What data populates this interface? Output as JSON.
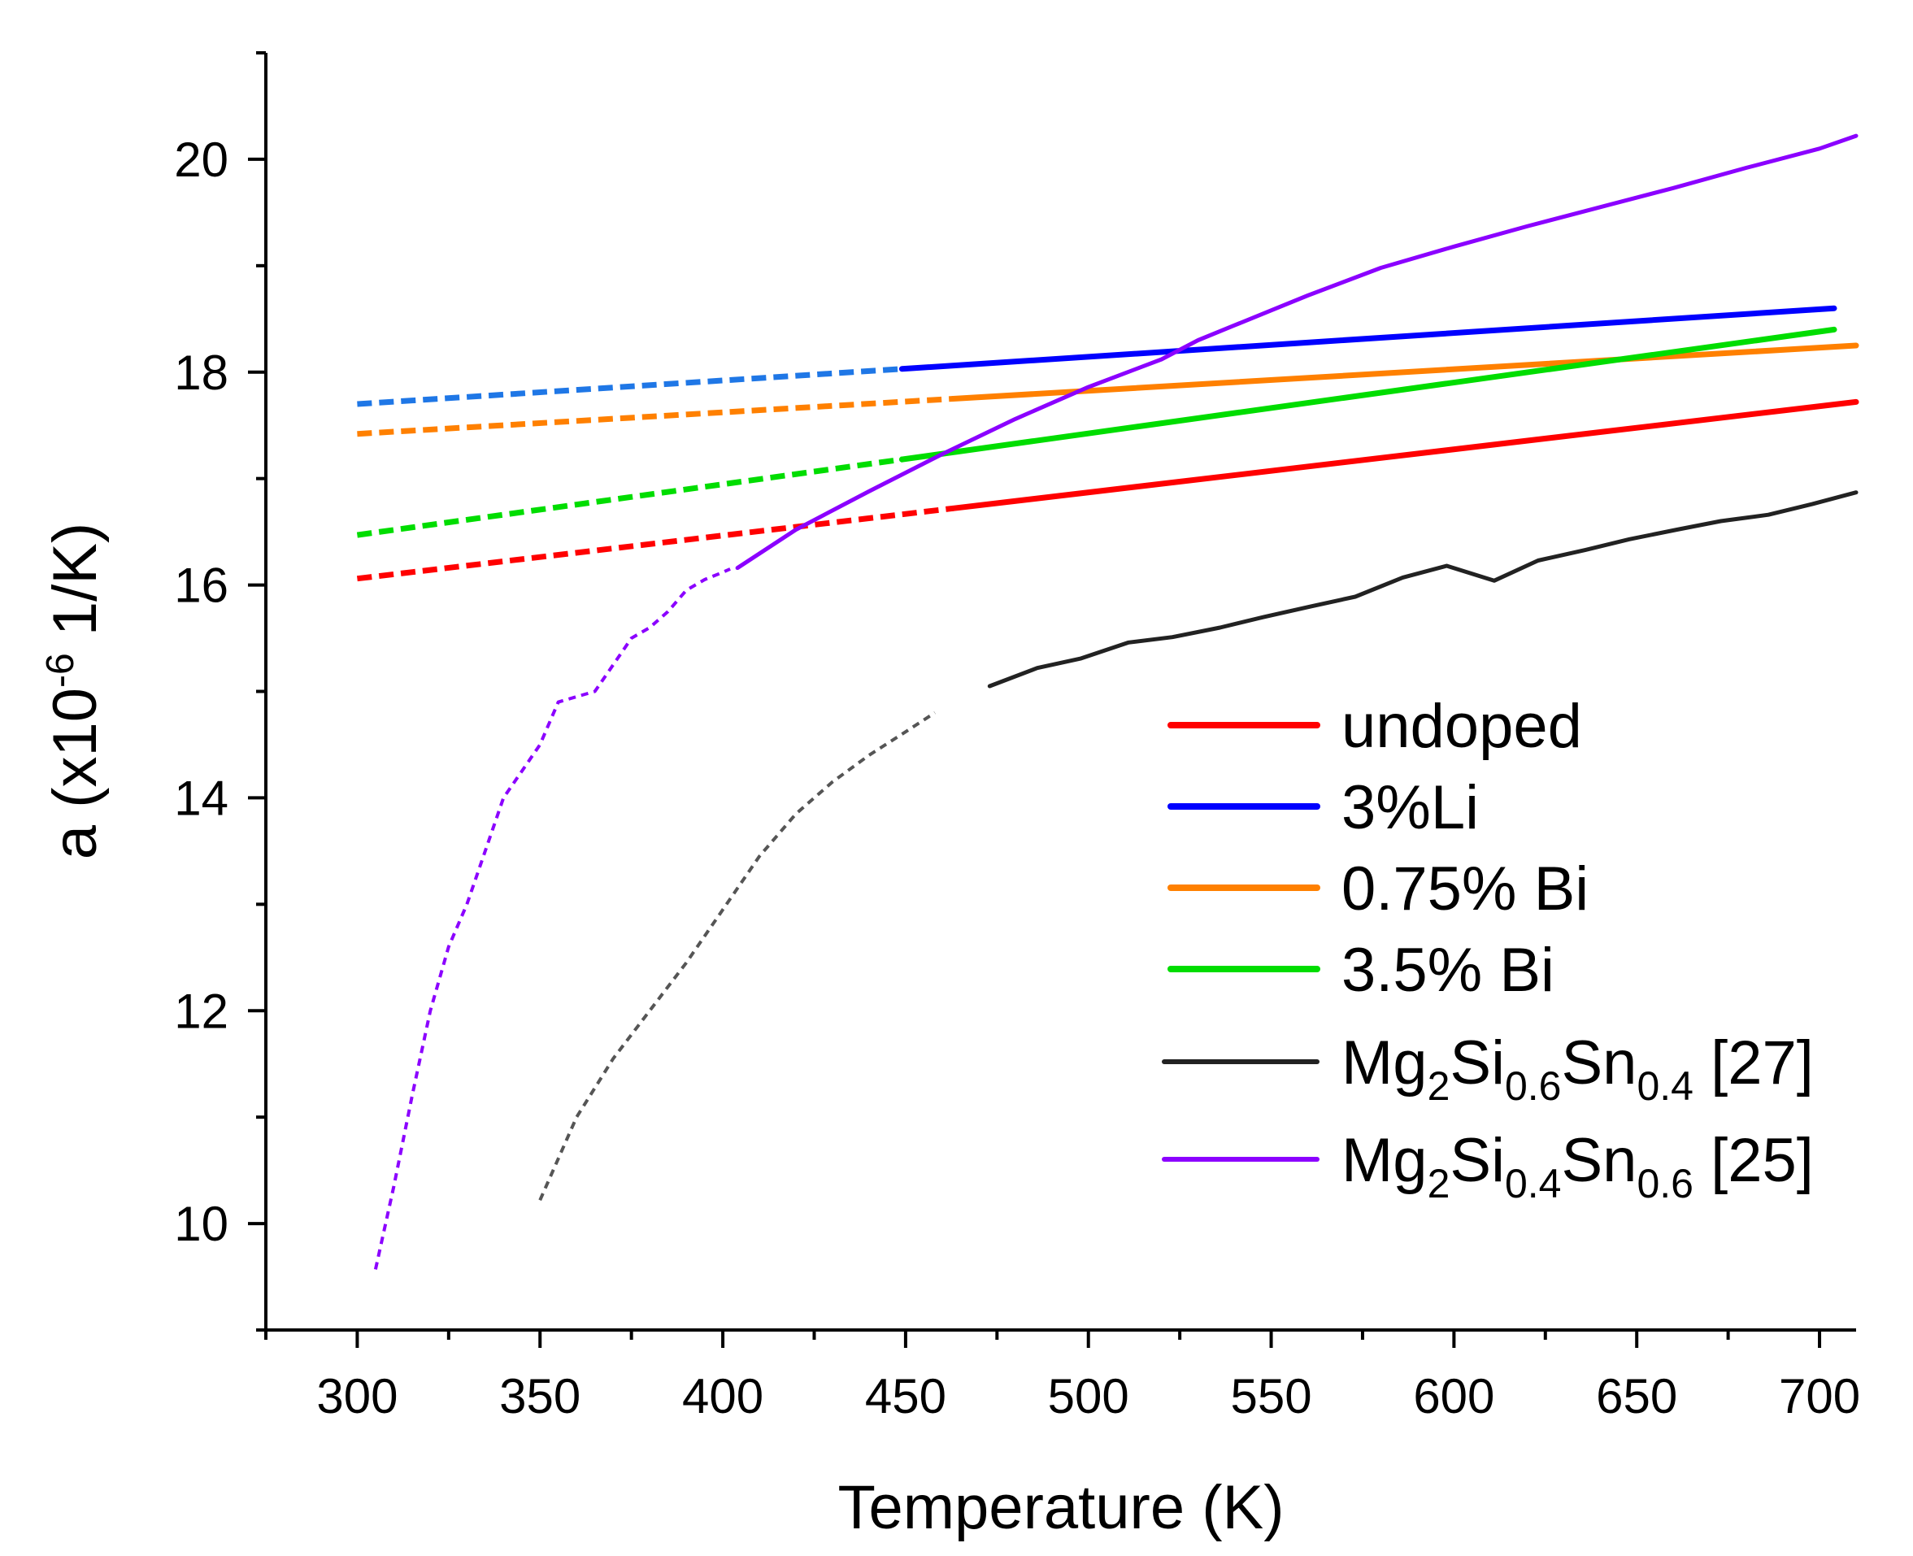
{
  "chart_data": {
    "type": "line",
    "title": "",
    "xlabel": "Temperature (K)",
    "ylabel": {
      "prefix": "a (x10",
      "exponent": "-6",
      "suffix": " 1/K)"
    },
    "xlim": [
      275,
      710
    ],
    "ylim": [
      9,
      21
    ],
    "xticks": [
      300,
      350,
      400,
      450,
      500,
      550,
      600,
      650,
      700
    ],
    "xtick_labels": [
      "300",
      "350",
      "400",
      "450",
      "500",
      "550",
      "600",
      "650",
      "700"
    ],
    "yticks": [
      10,
      12,
      14,
      16,
      18,
      20
    ],
    "ytick_labels": [
      "10",
      "12",
      "14",
      "16",
      "18",
      "20"
    ],
    "grid": false,
    "legend_position": "lower-right",
    "series": [
      {
        "name": "undoped",
        "color": "#ff0000",
        "dashed_color": "#ff0000",
        "segments": [
          {
            "style": "dashed",
            "x": [
              300,
              463
            ],
            "y": [
              16.06,
              16.72
            ]
          },
          {
            "style": "solid",
            "x": [
              463,
              710
            ],
            "y": [
              16.72,
              17.72
            ]
          }
        ]
      },
      {
        "name": "3%Li",
        "color": "#0000ff",
        "dashed_color": "#1f77e6",
        "segments": [
          {
            "style": "dashed",
            "x": [
              300,
              449
            ],
            "y": [
              17.7,
              18.03
            ]
          },
          {
            "style": "solid",
            "x": [
              449,
              704
            ],
            "y": [
              18.03,
              18.6
            ]
          }
        ]
      },
      {
        "name": "0.75% Bi",
        "color": "#ff8000",
        "dashed_color": "#ff8000",
        "segments": [
          {
            "style": "dashed",
            "x": [
              300,
              463
            ],
            "y": [
              17.42,
              17.75
            ]
          },
          {
            "style": "solid",
            "x": [
              463,
              710
            ],
            "y": [
              17.75,
              18.25
            ]
          }
        ]
      },
      {
        "name": "3.5% Bi",
        "color": "#00dd00",
        "dashed_color": "#00dd00",
        "segments": [
          {
            "style": "dashed",
            "x": [
              300,
              449
            ],
            "y": [
              16.47,
              17.18
            ]
          },
          {
            "style": "solid",
            "x": [
              449,
              704
            ],
            "y": [
              17.18,
              18.4
            ]
          }
        ]
      },
      {
        "name_parts": [
          {
            "text": "Mg",
            "sub": false
          },
          {
            "text": "2",
            "sub": true
          },
          {
            "text": "Si",
            "sub": false
          },
          {
            "text": "0.6",
            "sub": true
          },
          {
            "text": "Sn",
            "sub": false
          },
          {
            "text": "0.4",
            "sub": true
          },
          {
            "text": " [27]",
            "sub": false
          }
        ],
        "color": "#222222",
        "dashed_color": "#555555",
        "segments": [
          {
            "style": "dashed",
            "x": [
              350,
              360,
              370,
              380,
              390,
              400,
              410,
              420,
              430,
              440,
              450,
              458
            ],
            "y": [
              10.22,
              11.0,
              11.55,
              12.0,
              12.45,
              12.95,
              13.45,
              13.85,
              14.15,
              14.4,
              14.62,
              14.8
            ]
          },
          {
            "style": "solid",
            "x": [
              473,
              486,
              498,
              511,
              523,
              536,
              548,
              561,
              573,
              586,
              598,
              611,
              623,
              636,
              648,
              661,
              673,
              686,
              698,
              710
            ],
            "y": [
              15.05,
              15.22,
              15.31,
              15.46,
              15.51,
              15.6,
              15.7,
              15.8,
              15.89,
              16.07,
              16.18,
              16.04,
              16.23,
              16.33,
              16.43,
              16.52,
              16.6,
              16.66,
              16.76,
              16.87
            ]
          }
        ]
      },
      {
        "name_parts": [
          {
            "text": "Mg",
            "sub": false
          },
          {
            "text": "2",
            "sub": true
          },
          {
            "text": "Si",
            "sub": false
          },
          {
            "text": "0.4",
            "sub": true
          },
          {
            "text": "Sn",
            "sub": false
          },
          {
            "text": "0.6",
            "sub": true
          },
          {
            "text": " [25]",
            "sub": false
          }
        ],
        "color": "#8b00ff",
        "dashed_color": "#8b00ff",
        "segments": [
          {
            "style": "dashed",
            "x": [
              305,
              310,
              315,
              320,
              325,
              330,
              335,
              340,
              345,
              350,
              355,
              360,
              365,
              370,
              375,
              380,
              385,
              390,
              395,
              400,
              402
            ],
            "y": [
              9.57,
              10.35,
              11.2,
              12.0,
              12.6,
              13.0,
              13.5,
              14.0,
              14.25,
              14.5,
              14.9,
              14.95,
              15.0,
              15.25,
              15.5,
              15.6,
              15.75,
              15.95,
              16.05,
              16.12,
              16.15
            ]
          },
          {
            "style": "solid",
            "x": [
              404,
              420,
              440,
              460,
              480,
              500,
              520,
              530,
              540,
              560,
              580,
              600,
              620,
              640,
              660,
              680,
              700,
              710
            ],
            "y": [
              16.16,
              16.52,
              16.88,
              17.23,
              17.56,
              17.86,
              18.12,
              18.3,
              18.44,
              18.72,
              18.98,
              19.18,
              19.37,
              19.55,
              19.73,
              19.92,
              20.1,
              20.22
            ]
          }
        ]
      }
    ]
  }
}
